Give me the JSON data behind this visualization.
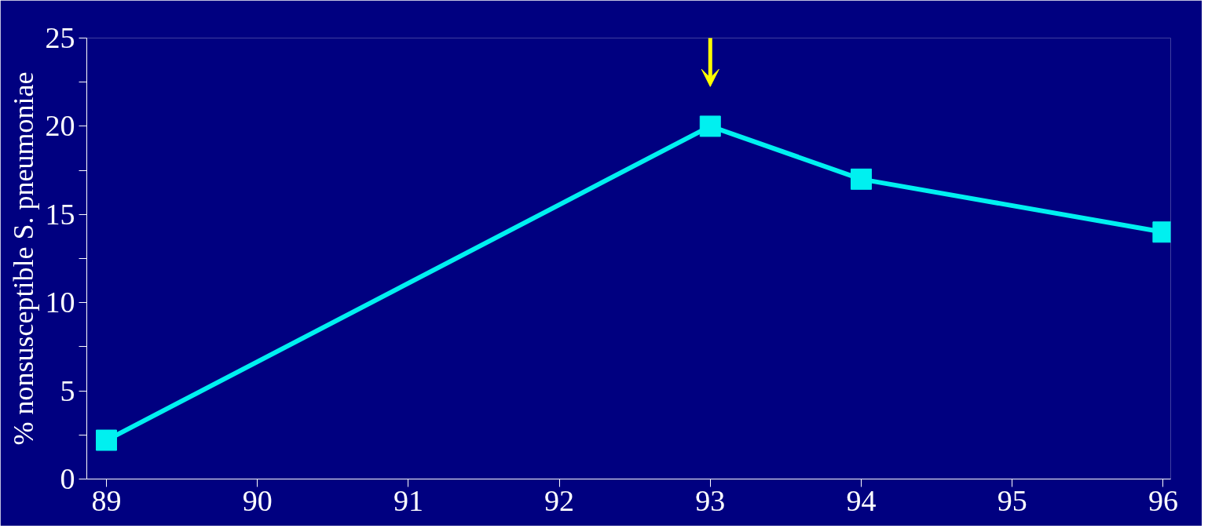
{
  "chart_data": {
    "type": "line",
    "ylabel": "% nonsusceptible S. pneumoniae",
    "x": [
      89,
      93,
      94,
      96
    ],
    "series": [
      {
        "color": "#00f0f0",
        "values": [
          2.2,
          20,
          17,
          14
        ]
      }
    ],
    "xlim": [
      88.87,
      96.05
    ],
    "ylim": [
      0,
      25
    ],
    "xticks": [
      89,
      90,
      91,
      92,
      93,
      94,
      95,
      96
    ],
    "yticks": [
      0,
      {
        "value": 2.5,
        "label": null
      },
      5,
      {
        "value": 7.5,
        "label": null
      },
      10,
      {
        "value": 12.5,
        "label": null
      },
      15,
      {
        "value": 17.5,
        "label": null
      },
      20,
      {
        "value": 22.5,
        "label": null
      },
      25
    ],
    "marker": "square",
    "line_style": "solid",
    "grid": false
  }
}
